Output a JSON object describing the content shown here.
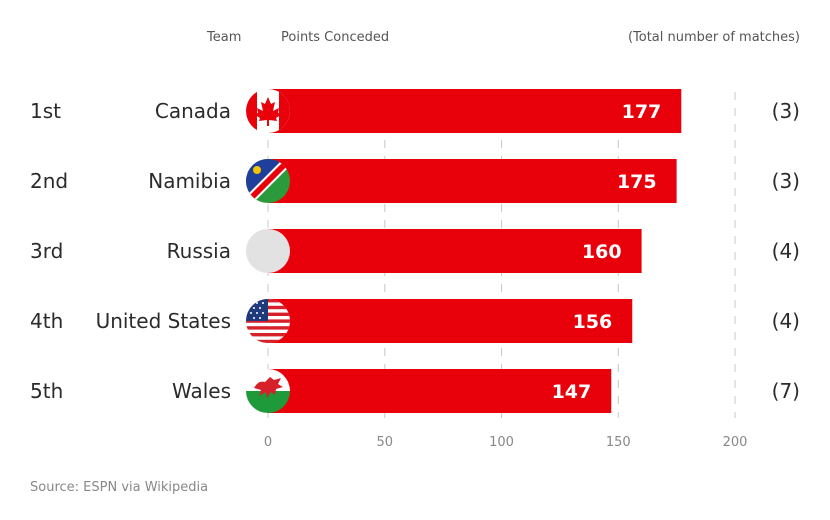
{
  "headers": {
    "team": "Team",
    "points": "Points Conceded",
    "matches": "(Total number of matches)"
  },
  "source": "Source: ESPN via Wikipedia",
  "colors": {
    "bar": "#e8000b",
    "grid": "#c8c8c8",
    "placeholder_flag": "#e2e2e2"
  },
  "chart_data": {
    "type": "bar",
    "orientation": "horizontal",
    "title": "",
    "xlabel": "Points Conceded",
    "ylabel": "Team",
    "xlim": [
      0,
      200
    ],
    "xticks": [
      0,
      50,
      100,
      150,
      200
    ],
    "grid": true,
    "ranks": [
      "1st",
      "2nd",
      "3rd",
      "4th",
      "5th"
    ],
    "categories": [
      "Canada",
      "Namibia",
      "Russia",
      "United States",
      "Wales"
    ],
    "values": [
      177,
      175,
      160,
      156,
      147
    ],
    "matches": [
      "(3)",
      "(3)",
      "(4)",
      "(4)",
      "(7)"
    ],
    "flag_icons": [
      "canada-flag-icon",
      "namibia-flag-icon",
      "russia-flag-placeholder-icon",
      "united-states-flag-icon",
      "wales-flag-icon"
    ]
  }
}
